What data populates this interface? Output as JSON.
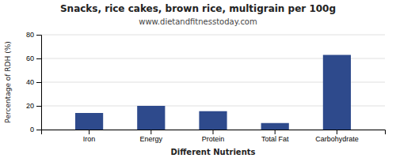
{
  "chart_data": {
    "type": "bar",
    "title": "Snacks, rice cakes, brown rice, multigrain per 100g",
    "subtitle": "www.dietandfitnesstoday.com",
    "categories": [
      "Iron",
      "Energy",
      "Protein",
      "Total Fat",
      "Carbohydrate"
    ],
    "values": [
      14,
      20,
      15.5,
      5.5,
      63
    ],
    "color": "#2e4a8c",
    "xlabel": "Different Nutrients",
    "ylabel": "Percentage of RDH (%)",
    "ylim": [
      0,
      80
    ],
    "yticks": [
      0,
      20,
      40,
      60,
      80
    ],
    "grid": true
  }
}
